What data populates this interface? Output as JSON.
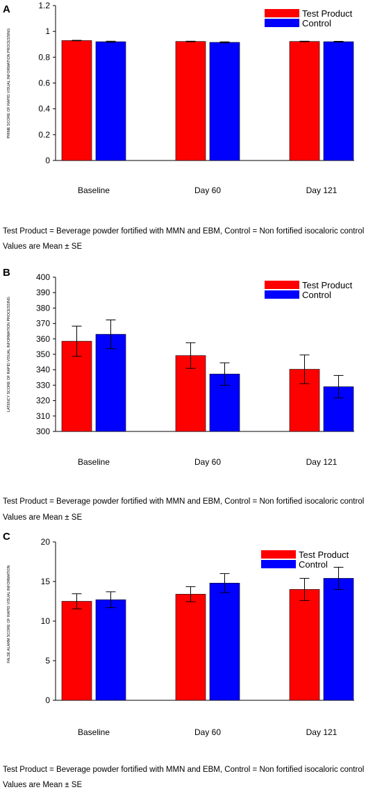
{
  "colors": {
    "test_product": "#ff0000",
    "control": "#0000ff",
    "axis": "#000000"
  },
  "chart_data": [
    {
      "type": "bar",
      "panel_label": "A",
      "ylabel": "PRIME SCORE OF RAPID VISUAL INFORMATION PROCESSING",
      "xlabel": "",
      "categories": [
        "Baseline",
        "Day 60",
        "Day 121"
      ],
      "ylim": [
        0,
        1.2
      ],
      "yticks": [
        "0",
        "0.2",
        "0.4",
        "0.6",
        "0.8",
        "1",
        "1.2"
      ],
      "ytick_values": [
        0,
        0.2,
        0.4,
        0.6,
        0.8,
        1.0,
        1.2
      ],
      "series": [
        {
          "name": "Test Product",
          "values": [
            0.929,
            0.922,
            0.922
          ],
          "errors": [
            0.002,
            0.002,
            0.002
          ]
        },
        {
          "name": "Control",
          "values": [
            0.92,
            0.915,
            0.92
          ],
          "errors": [
            0.004,
            0.004,
            0.003
          ]
        }
      ],
      "legend": "top-right",
      "caption_lines": [
        "Test Product = Beverage powder fortified with MMN and EBM, Control = Non fortified isocaloric control",
        "Values are Mean ± SE"
      ]
    },
    {
      "type": "bar",
      "panel_label": "B",
      "ylabel": "LATENCY SCORE OF RAPID VISUAL INFORMATION PROCESSING",
      "xlabel": "",
      "categories": [
        "Baseline",
        "Day 60",
        "Day 121"
      ],
      "ylim": [
        300,
        400
      ],
      "yticks": [
        "300",
        "310",
        "320",
        "330",
        "340",
        "350",
        "360",
        "370",
        "380",
        "390",
        "400"
      ],
      "ytick_values": [
        300,
        310,
        320,
        330,
        340,
        350,
        360,
        370,
        380,
        390,
        400
      ],
      "series": [
        {
          "name": "Test Product",
          "values": [
            358.5,
            349.2,
            340.3
          ],
          "errors": [
            9.8,
            8.3,
            9.3
          ]
        },
        {
          "name": "Control",
          "values": [
            363.0,
            337.2,
            329.0
          ],
          "errors": [
            9.3,
            7.3,
            7.3
          ]
        }
      ],
      "legend": "top-right",
      "caption_lines": [
        "Test Product = Beverage powder fortified with MMN and EBM, Control = Non fortified isocaloric control",
        "Values are Mean ± SE"
      ]
    },
    {
      "type": "bar",
      "panel_label": "C",
      "ylabel": "FALSE ALARM SCORE OF RAPID VISUAL INFORMATION",
      "xlabel": "",
      "categories": [
        "Baseline",
        "Day 60",
        "Day 121"
      ],
      "ylim": [
        0,
        20
      ],
      "yticks": [
        "0",
        "5",
        "10",
        "15",
        "20"
      ],
      "ytick_values": [
        0,
        5,
        10,
        15,
        20
      ],
      "series": [
        {
          "name": "Test Product",
          "values": [
            12.5,
            13.4,
            14.0
          ],
          "errors": [
            0.95,
            0.95,
            1.4
          ]
        },
        {
          "name": "Control",
          "values": [
            12.7,
            14.8,
            15.4
          ],
          "errors": [
            1.0,
            1.2,
            1.4
          ]
        }
      ],
      "legend": "top-right",
      "caption_lines": [
        "Test Product = Beverage powder fortified with MMN and EBM, Control = Non fortified isocaloric control",
        "Values are Mean ± SE"
      ]
    }
  ]
}
